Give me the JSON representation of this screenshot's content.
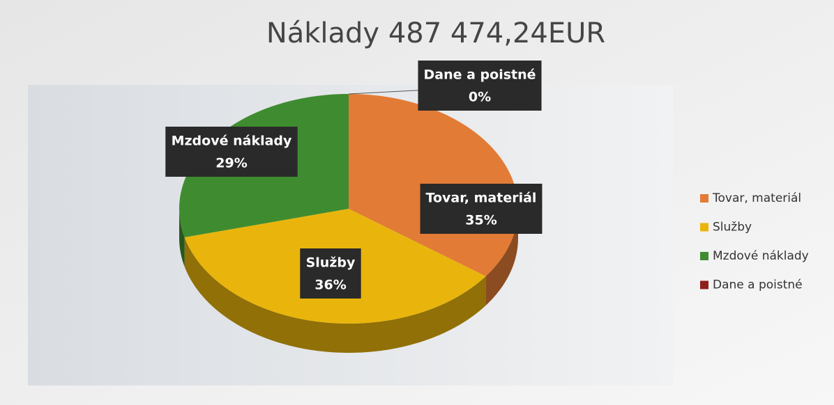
{
  "chart_data": {
    "type": "pie3d",
    "title": "Náklady 487 474,24EUR",
    "categories": [
      "Tovar, materiál",
      "Služby",
      "Mzdové náklady",
      "Dane a poistné"
    ],
    "values": [
      35,
      36,
      29,
      0
    ],
    "value_labels": [
      "35%",
      "36%",
      "29%",
      "0%"
    ],
    "colors": [
      "#e27b36",
      "#e9b50c",
      "#3f8c30",
      "#8e1f1c"
    ],
    "legend": "right"
  }
}
